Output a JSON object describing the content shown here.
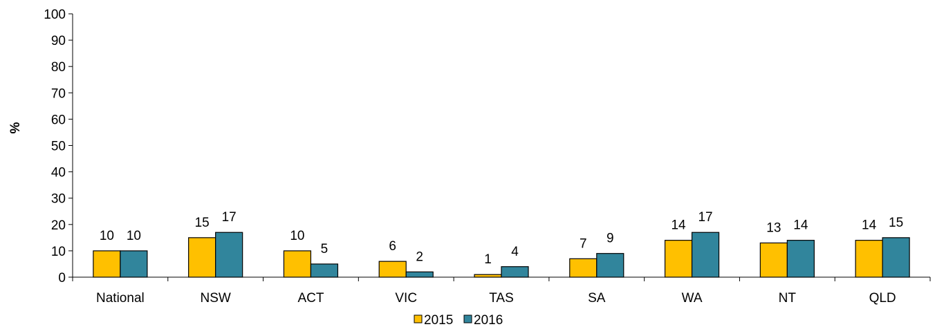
{
  "chart_data": {
    "type": "bar",
    "categories": [
      "National",
      "NSW",
      "ACT",
      "VIC",
      "TAS",
      "SA",
      "WA",
      "NT",
      "QLD"
    ],
    "series": [
      {
        "name": "2015",
        "color": "#FFC000",
        "values": [
          10,
          15,
          10,
          6,
          1,
          7,
          14,
          13,
          14
        ]
      },
      {
        "name": "2016",
        "color": "#31859C",
        "values": [
          10,
          17,
          5,
          2,
          4,
          9,
          17,
          14,
          15
        ]
      }
    ],
    "ylabel": "%",
    "ylim": [
      0,
      100
    ],
    "yticks": [
      0,
      10,
      20,
      30,
      40,
      50,
      60,
      70,
      80,
      90,
      100
    ],
    "grid": false,
    "legend": "bottom"
  }
}
